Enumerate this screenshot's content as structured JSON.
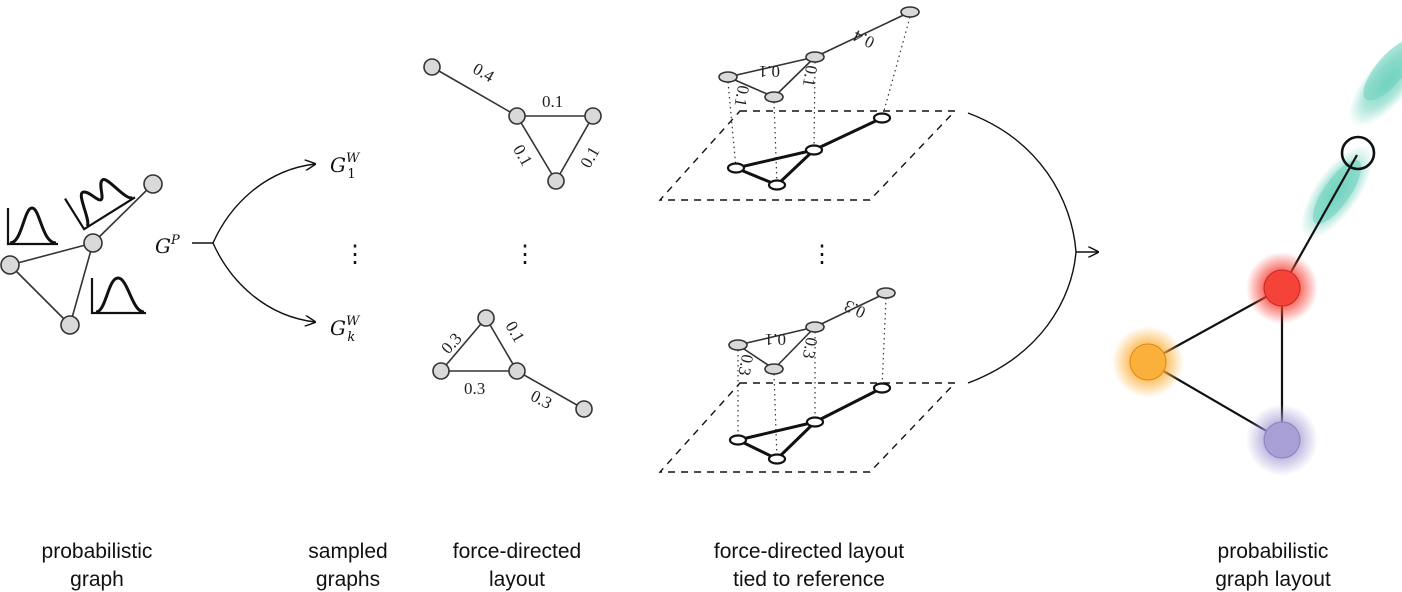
{
  "captions": {
    "probabilistic_graph": [
      "probabilistic",
      "graph"
    ],
    "sampled_graphs": [
      "sampled",
      "graphs"
    ],
    "force_directed_layout": [
      "force-directed",
      "layout"
    ],
    "tied_to_reference": [
      "force-directed layout",
      "tied to reference"
    ],
    "probabilistic_graph_layout": [
      "probabilistic",
      "graph layout"
    ]
  },
  "symbols": {
    "gp_base": "G",
    "gp_sup": "P",
    "g1_base": "G",
    "g1_sup": "W",
    "g1_sub": "1",
    "gk_base": "G",
    "gk_sup": "W",
    "gk_sub": "k",
    "ellipsis": "⋮"
  },
  "layout_top_weights": [
    "0.4",
    "0.1",
    "0.1",
    "0.1"
  ],
  "layout_bottom_weights": [
    "0.3",
    "0.1",
    "0.3",
    "0.3"
  ],
  "ref_top_weights": [
    "0.1",
    "0.4",
    "0.1",
    "0.1"
  ],
  "ref_bottom_weights": [
    "0.1",
    "0.3",
    "0.3",
    "0.3"
  ],
  "colors": {
    "teal": "#6ed2bd",
    "red": "#f5433a",
    "orange": "#fbb03b",
    "purple": "#a89fd6",
    "node_fill": "#d9d9d9"
  }
}
